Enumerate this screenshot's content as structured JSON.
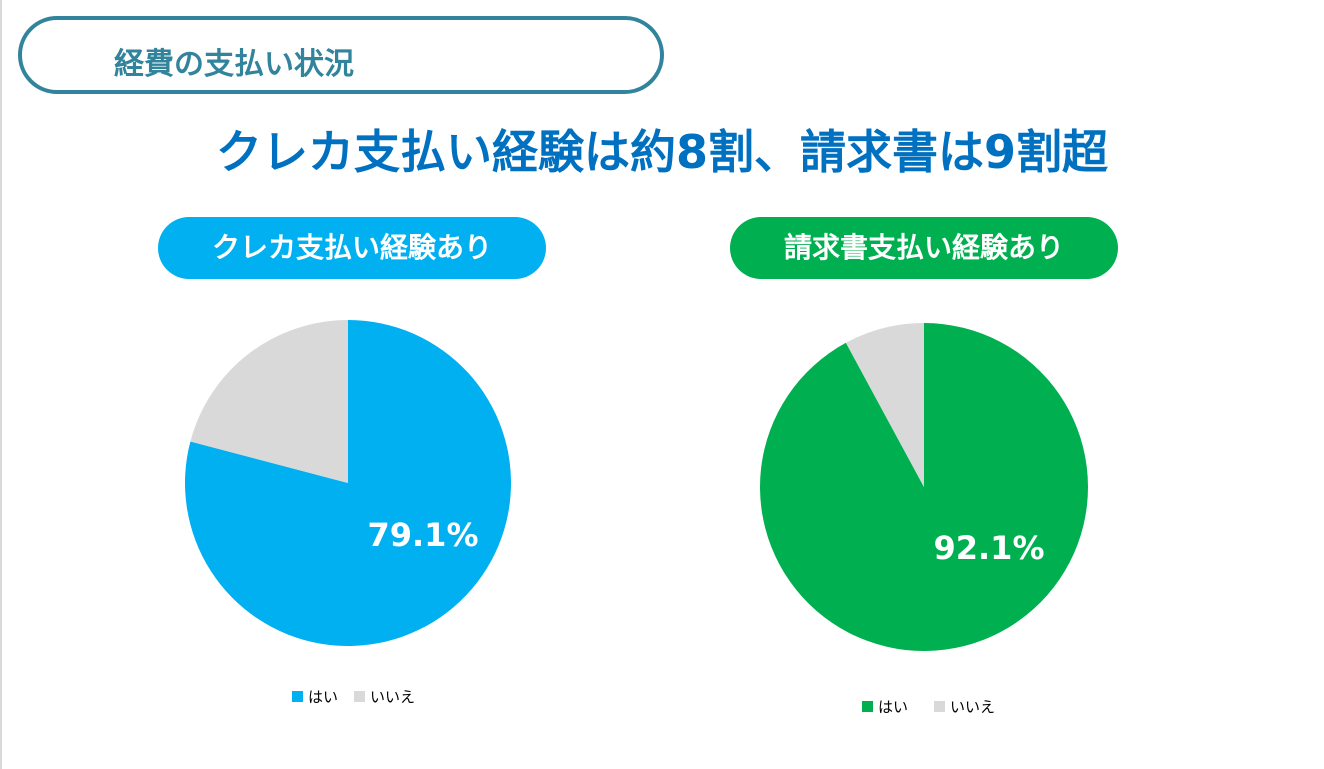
{
  "section_label": "経費の支払い状況",
  "headline": "クレカ支払い経験は約8割、請求書は9割超",
  "colors": {
    "section": "#31849b",
    "headline": "#0070c0",
    "credit": "#00b0f0",
    "invoice": "#00b050",
    "no": "#d9d9d9"
  },
  "chart_data": [
    {
      "type": "pie",
      "title": "クレカ支払い経験あり",
      "categories": [
        "はい",
        "いいえ"
      ],
      "values": [
        79.1,
        20.9
      ],
      "data_labels": [
        "79.1%"
      ],
      "colors": [
        "#00b0f0",
        "#d9d9d9"
      ],
      "legend": "bottom"
    },
    {
      "type": "pie",
      "title": "請求書支払い経験あり",
      "categories": [
        "はい",
        "いいえ"
      ],
      "values": [
        92.1,
        7.9
      ],
      "data_labels": [
        "92.1%"
      ],
      "colors": [
        "#00b050",
        "#d9d9d9"
      ],
      "legend": "bottom"
    }
  ]
}
